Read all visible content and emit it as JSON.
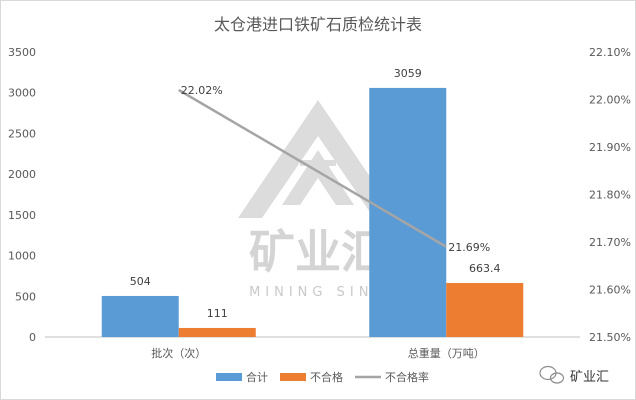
{
  "chart_data": {
    "type": "bar",
    "title": "太仓港进口铁矿石质检统计表",
    "categories": [
      "批次（次）",
      "总重量（万吨）"
    ],
    "series": [
      {
        "name": "合计",
        "type": "bar",
        "axis": "left",
        "color": "#5B9BD5",
        "values": [
          504,
          3059
        ]
      },
      {
        "name": "不合格",
        "type": "bar",
        "axis": "left",
        "color": "#ED7D31",
        "values": [
          111,
          663.4
        ]
      },
      {
        "name": "不合格率",
        "type": "line",
        "axis": "right",
        "color": "#A5A5A5",
        "values": [
          22.02,
          21.69
        ],
        "labels": [
          "22.02%",
          "21.69%"
        ]
      }
    ],
    "y_left": {
      "min": 0,
      "max": 3500,
      "step": 500,
      "ticks": [
        "0",
        "500",
        "1000",
        "1500",
        "2000",
        "2500",
        "3000",
        "3500"
      ]
    },
    "y_right": {
      "min": 21.5,
      "max": 22.1,
      "step": 0.1,
      "ticks": [
        "21.50%",
        "21.60%",
        "21.70%",
        "21.80%",
        "21.90%",
        "22.00%",
        "22.10%"
      ]
    },
    "grid": false,
    "legend": "bottom"
  },
  "watermark": {
    "big": "矿业汇",
    "small": "MINING SINK",
    "color": "#d0d0d0"
  },
  "brand": {
    "label": "矿业汇"
  }
}
